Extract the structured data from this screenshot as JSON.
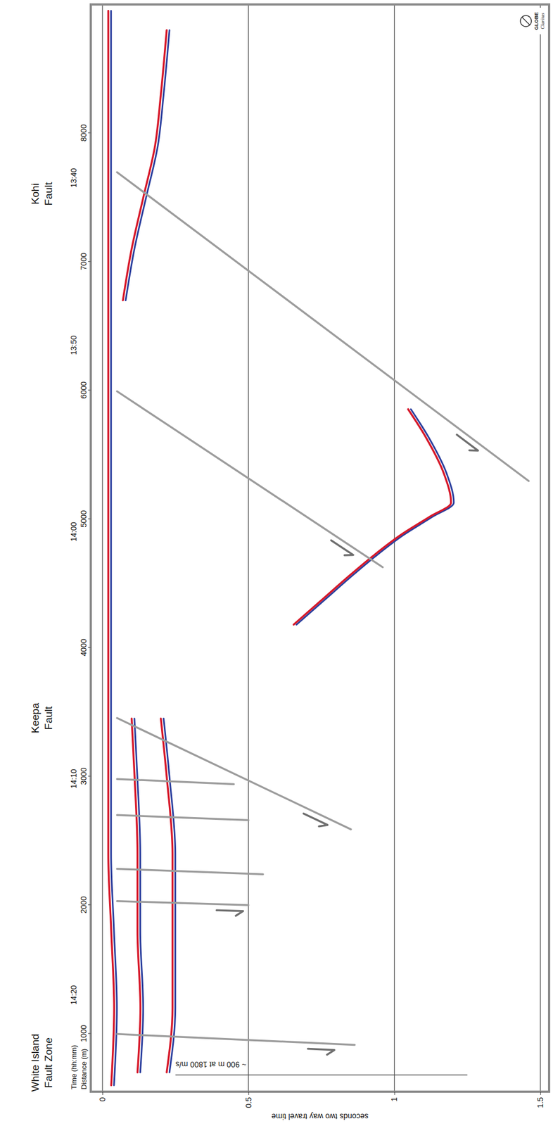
{
  "chart_data": {
    "type": "line",
    "xlabel": "Distance (m)",
    "x2label": "Time (hh:mm)",
    "ylabel": "seconds two way travel time",
    "xlim": [
      550,
      9000
    ],
    "xticks": [
      1000,
      2000,
      3000,
      4000,
      5000,
      6000,
      7000,
      8000
    ],
    "x2ticks": [
      {
        "value": 1300,
        "label": "14:20"
      },
      {
        "value": 2980,
        "label": "14:10"
      },
      {
        "value": 4900,
        "label": "14:00"
      },
      {
        "value": 6350,
        "label": "13:50"
      },
      {
        "value": 7650,
        "label": "13:40"
      }
    ],
    "ylim": [
      -0.04,
      1.53
    ],
    "yticks": [
      0,
      0.5,
      1,
      1.5
    ],
    "grid": true,
    "series": [
      {
        "color": "#d7192a",
        "x": [
          600,
          1200,
          1800,
          2400,
          3000,
          3600,
          4200,
          4800,
          5400,
          6000,
          6600,
          7200,
          7800,
          8400,
          8950
        ],
        "values": [
          0.03,
          0.04,
          0.03,
          0.02,
          0.02,
          0.02,
          0.02,
          0.02,
          0.02,
          0.02,
          0.02,
          0.02,
          0.02,
          0.02,
          0.02
        ]
      },
      {
        "color": "#d7192a",
        "x": [
          700,
          1200,
          1800,
          2400,
          3000,
          3450
        ],
        "values": [
          0.12,
          0.13,
          0.12,
          0.12,
          0.11,
          0.1
        ]
      },
      {
        "color": "#d7192a",
        "x": [
          700,
          1200,
          1800,
          2400,
          3000,
          3450
        ],
        "values": [
          0.22,
          0.24,
          0.24,
          0.24,
          0.22,
          0.2
        ]
      },
      {
        "color": "#d7192a",
        "x": [
          6700,
          7100,
          7500,
          7900,
          8300,
          8800
        ],
        "values": [
          0.07,
          0.1,
          0.14,
          0.18,
          0.2,
          0.22
        ]
      },
      {
        "color": "#d7192a",
        "x": [
          4180,
          4375,
          4570,
          4710,
          4877,
          5017,
          5128,
          5351,
          5631,
          5854
        ],
        "values": [
          0.655,
          0.753,
          0.851,
          0.925,
          1.022,
          1.12,
          1.194,
          1.17,
          1.109,
          1.047
        ]
      }
    ],
    "faults": [
      {
        "x": [
          998,
          914
        ],
        "y": [
          0.05,
          0.864
        ],
        "marker": "half-arrow"
      },
      {
        "x": [
          2031,
          2000
        ],
        "y": [
          0.05,
          0.5
        ],
        "marker": "half-arrow"
      },
      {
        "x": [
          2282,
          2240
        ],
        "y": [
          0.05,
          0.55
        ]
      },
      {
        "x": [
          2700,
          2660
        ],
        "y": [
          0.05,
          0.5
        ]
      },
      {
        "x": [
          2980,
          2940
        ],
        "y": [
          0.05,
          0.45
        ]
      },
      {
        "x": [
          3454,
          2589
        ],
        "y": [
          0.05,
          0.851
        ],
        "marker": "half-arrow"
      },
      {
        "x": [
          5993,
          4626
        ],
        "y": [
          0.05,
          0.96
        ],
        "marker": "half-arrow"
      },
      {
        "x": [
          7696,
          5296
        ],
        "y": [
          0.05,
          1.46
        ],
        "marker": "half-arrow"
      }
    ],
    "annotations": [
      {
        "text": "White Island Fault Zone",
        "x": 775
      },
      {
        "text": "Keepa Fault",
        "x": 3454
      },
      {
        "text": "Kohi Fault",
        "x": 7528
      }
    ],
    "scale_bar": {
      "label": "~ 900 m at 1800 m/s",
      "x": 680,
      "y": [
        0.25,
        1.25
      ]
    },
    "logo": [
      "GLOBE",
      "Claritas"
    ]
  }
}
